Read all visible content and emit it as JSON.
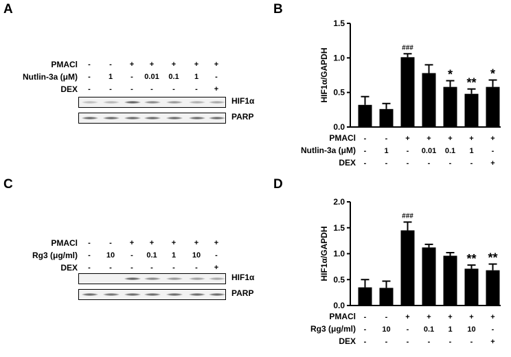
{
  "panels": {
    "A": {
      "letter": "A",
      "rows": [
        {
          "label": "PMACl",
          "cells": [
            "-",
            "-",
            "+",
            "+",
            "+",
            "+",
            "+"
          ]
        },
        {
          "label": "Nutlin-3a (μM)",
          "cells": [
            "-",
            "1",
            "-",
            "0.01",
            "0.1",
            "1",
            "-"
          ]
        },
        {
          "label": "DEX",
          "cells": [
            "-",
            "-",
            "-",
            "-",
            "-",
            "-",
            "+"
          ]
        }
      ],
      "blots": [
        {
          "name": "HIF1α",
          "intensity": [
            0.35,
            0.4,
            0.95,
            0.7,
            0.6,
            0.45,
            0.5
          ]
        },
        {
          "name": "PARP",
          "intensity": [
            0.9,
            0.9,
            0.9,
            0.9,
            0.9,
            0.9,
            0.9
          ]
        }
      ]
    },
    "C": {
      "letter": "C",
      "rows": [
        {
          "label": "PMACl",
          "cells": [
            "-",
            "-",
            "+",
            "+",
            "+",
            "+",
            "+"
          ]
        },
        {
          "label": "Rg3 (μg/ml)",
          "cells": [
            "-",
            "10",
            "-",
            "0.1",
            "1",
            "10",
            "-"
          ]
        },
        {
          "label": "DEX",
          "cells": [
            "-",
            "-",
            "-",
            "-",
            "-",
            "-",
            "+"
          ]
        }
      ],
      "blots": [
        {
          "name": "HIF1α",
          "intensity": [
            0.0,
            0.0,
            0.95,
            0.7,
            0.6,
            0.55,
            0.5
          ]
        },
        {
          "name": "PARP",
          "intensity": [
            0.9,
            0.85,
            0.9,
            0.9,
            0.9,
            0.9,
            0.9
          ]
        }
      ]
    }
  },
  "chart_data": [
    {
      "panel": "B",
      "type": "bar",
      "ylabel": "HIF1α/GAPDH",
      "ylim": [
        0,
        1.5
      ],
      "yticks": [
        "0.0",
        "0.5",
        "1.0",
        "1.5"
      ],
      "values": [
        0.32,
        0.26,
        1.01,
        0.78,
        0.58,
        0.48,
        0.58
      ],
      "errors": [
        0.12,
        0.08,
        0.05,
        0.12,
        0.09,
        0.07,
        0.1
      ],
      "annotations": [
        "",
        "",
        "###",
        "",
        "*",
        "**",
        "*"
      ],
      "bar_color": "#000000",
      "table": [
        {
          "label": "PMACl",
          "cells": [
            "-",
            "-",
            "+",
            "+",
            "+",
            "+",
            "+"
          ]
        },
        {
          "label": "Nutlin-3a (μM)",
          "cells": [
            "-",
            "1",
            "-",
            "0.01",
            "0.1",
            "1",
            "-"
          ]
        },
        {
          "label": "DEX",
          "cells": [
            "-",
            "-",
            "-",
            "-",
            "-",
            "-",
            "+"
          ]
        }
      ]
    },
    {
      "panel": "D",
      "type": "bar",
      "ylabel": "HIF1α/GAPDH",
      "ylim": [
        0,
        2.0
      ],
      "yticks": [
        "0.0",
        "0.5",
        "1.0",
        "1.5",
        "2.0"
      ],
      "values": [
        0.35,
        0.34,
        1.45,
        1.12,
        0.96,
        0.71,
        0.68
      ],
      "errors": [
        0.15,
        0.13,
        0.16,
        0.06,
        0.06,
        0.07,
        0.12
      ],
      "annotations": [
        "",
        "",
        "###",
        "",
        "",
        "**",
        "**"
      ],
      "bar_color": "#000000",
      "table": [
        {
          "label": "PMACl",
          "cells": [
            "-",
            "-",
            "+",
            "+",
            "+",
            "+",
            "+"
          ]
        },
        {
          "label": "Rg3 (μg/ml)",
          "cells": [
            "-",
            "10",
            "-",
            "0.1",
            "1",
            "10",
            "-"
          ]
        },
        {
          "label": "DEX",
          "cells": [
            "-",
            "-",
            "-",
            "-",
            "-",
            "-",
            "+"
          ]
        }
      ]
    }
  ]
}
